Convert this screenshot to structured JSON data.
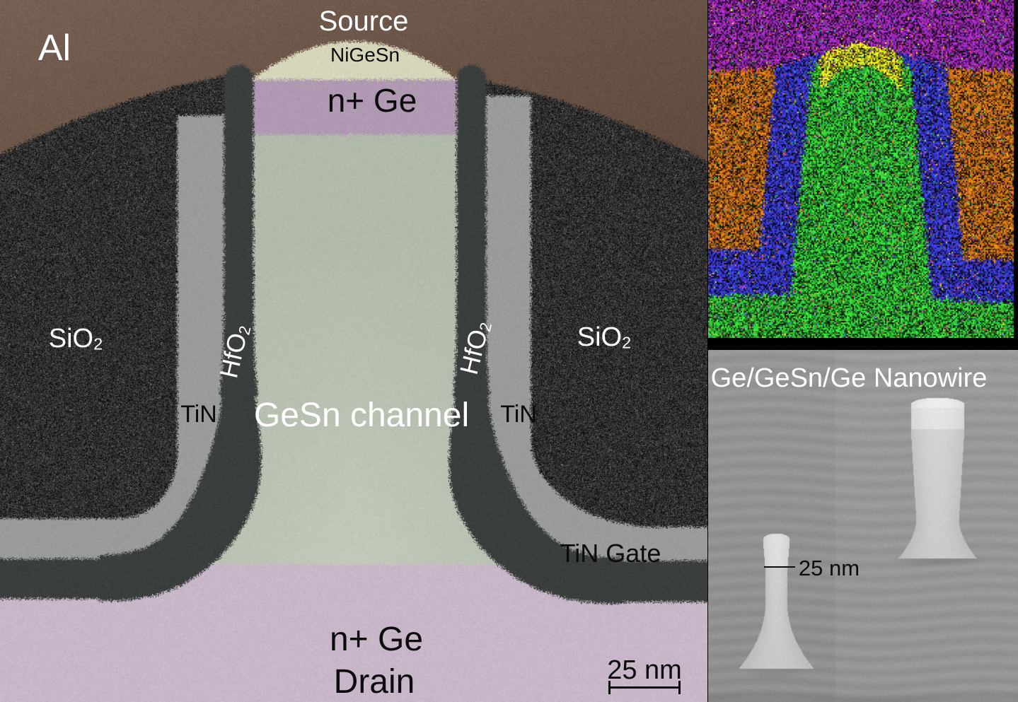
{
  "figure": {
    "tem": {
      "labels": {
        "al": "Al",
        "source": "Source",
        "nigesn": "NiGeSn",
        "n_ge_source": "n+ Ge",
        "sio2_main": "SiO",
        "sio2_sub": "2",
        "hfo2_main": "HfO",
        "hfo2_sub": "2",
        "tin": "TiN",
        "gesn_channel": "GeSn channel",
        "tin_gate": "TiN Gate",
        "n_ge_drain": "n+ Ge",
        "drain": "Drain",
        "scale_bar": "25 nm"
      },
      "region_colors": {
        "al": "#6c574a",
        "sio2": "#2d2d2d",
        "tin": "#999c99",
        "hfo2": "#3a3e3c",
        "channel": "#b2baac",
        "nigesn": "#d7d6ba",
        "n_ge_source": "#b099b2",
        "n_ge_drain": "#c7b7c9"
      }
    },
    "edx": {
      "region_colors": {
        "al_purple": "#8a24a0",
        "sio2_orange": "#b06414",
        "gate_blue": "#3434bc",
        "ge_green": "#2cb030",
        "ni_yellow": "#c4ca1c"
      }
    },
    "sem": {
      "title": "Ge/GeSn/Ge Nanowire",
      "scale_label": "25 nm",
      "colors": {
        "background": "#8e8e8e",
        "pillar": "#c8c8c8"
      }
    }
  }
}
